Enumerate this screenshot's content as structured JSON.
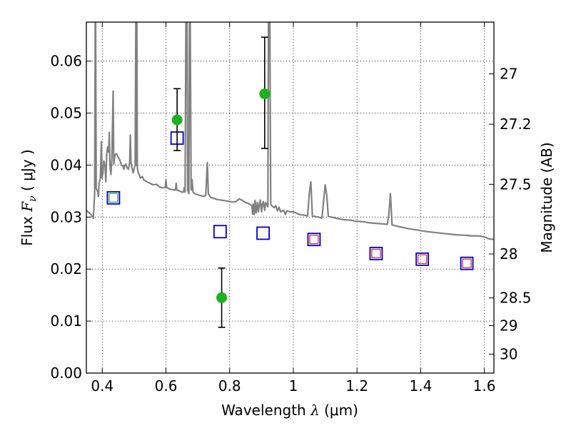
{
  "chart_data": {
    "type": "scatter",
    "x_axis": {
      "label_text": "Wavelength",
      "label_symbol": "λ",
      "label_unit": "(μm)",
      "range": [
        0.35,
        1.63
      ],
      "ticks": [
        0.4,
        0.6,
        0.8,
        1.0,
        1.2,
        1.4,
        1.6
      ],
      "tick_labels": [
        "0.4",
        "0.6",
        "0.8",
        "1",
        "1.2",
        "1.4",
        "1.6"
      ]
    },
    "y_axis": {
      "label_text": "Flux",
      "label_symbol": "F",
      "label_symbol_sub": "ν",
      "label_unit": "( μJy )",
      "range": [
        0.0,
        0.0675
      ],
      "ticks": [
        0.0,
        0.01,
        0.02,
        0.03,
        0.04,
        0.05,
        0.06
      ],
      "tick_labels": [
        "0.00",
        "0.01",
        "0.02",
        "0.03",
        "0.04",
        "0.05",
        "0.06"
      ]
    },
    "y2_axis": {
      "label": "Magnitude (AB)",
      "ticks": [
        27,
        27.2,
        27.5,
        28,
        28.5,
        29,
        30
      ],
      "tick_labels": [
        "27",
        "27.2",
        "27.5",
        "28",
        "28.5",
        "29",
        "30"
      ]
    },
    "grid": "dotted",
    "colors": {
      "model": "#808080",
      "observed": "#1db31d",
      "model_phot": "#0000cc",
      "inner_red": "#dd2222",
      "inner_green": "#22aa22",
      "errorbar": "#000000"
    },
    "series": [
      {
        "kind": "model_spectrum",
        "points": [
          [
            0.35,
            0.0313
          ],
          [
            0.365,
            0.0305
          ],
          [
            0.372,
            0.0298
          ],
          [
            0.376,
            0.0345
          ],
          [
            0.378,
            0.0702
          ],
          [
            0.379,
            0.0702
          ],
          [
            0.381,
            0.0355
          ],
          [
            0.385,
            0.035
          ],
          [
            0.388,
            0.034
          ],
          [
            0.39,
            0.0365
          ],
          [
            0.394,
            0.0375
          ],
          [
            0.397,
            0.0445
          ],
          [
            0.399,
            0.0375
          ],
          [
            0.402,
            0.0385
          ],
          [
            0.405,
            0.0408
          ],
          [
            0.409,
            0.0397
          ],
          [
            0.411,
            0.0368
          ],
          [
            0.414,
            0.0423
          ],
          [
            0.417,
            0.0435
          ],
          [
            0.42,
            0.0425
          ],
          [
            0.422,
            0.0463
          ],
          [
            0.424,
            0.0401
          ],
          [
            0.427,
            0.0382
          ],
          [
            0.43,
            0.0412
          ],
          [
            0.434,
            0.0542
          ],
          [
            0.436,
            0.0402
          ],
          [
            0.44,
            0.042
          ],
          [
            0.445,
            0.0422
          ],
          [
            0.45,
            0.0415
          ],
          [
            0.455,
            0.041
          ],
          [
            0.46,
            0.04
          ],
          [
            0.465,
            0.0398
          ],
          [
            0.468,
            0.0392
          ],
          [
            0.47,
            0.0398
          ],
          [
            0.474,
            0.0402
          ],
          [
            0.478,
            0.0395
          ],
          [
            0.482,
            0.0392
          ],
          [
            0.486,
            0.0405
          ],
          [
            0.488,
            0.0458
          ],
          [
            0.49,
            0.0405
          ],
          [
            0.493,
            0.0395
          ],
          [
            0.497,
            0.0385
          ],
          [
            0.5,
            0.0393
          ],
          [
            0.503,
            0.04
          ],
          [
            0.5055,
            0.0702
          ],
          [
            0.507,
            0.04
          ],
          [
            0.5085,
            0.0702
          ],
          [
            0.51,
            0.0395
          ],
          [
            0.513,
            0.0385
          ],
          [
            0.517,
            0.038
          ],
          [
            0.52,
            0.0375
          ],
          [
            0.526,
            0.0378
          ],
          [
            0.53,
            0.0372
          ],
          [
            0.54,
            0.0368
          ],
          [
            0.55,
            0.0365
          ],
          [
            0.56,
            0.0362
          ],
          [
            0.57,
            0.0363
          ],
          [
            0.58,
            0.0358
          ],
          [
            0.59,
            0.0356
          ],
          [
            0.598,
            0.0358
          ],
          [
            0.6,
            0.0372
          ],
          [
            0.602,
            0.0358
          ],
          [
            0.61,
            0.0354
          ],
          [
            0.62,
            0.0353
          ],
          [
            0.626,
            0.0352
          ],
          [
            0.63,
            0.0352
          ],
          [
            0.632,
            0.0365
          ],
          [
            0.634,
            0.0352
          ],
          [
            0.64,
            0.0351
          ],
          [
            0.65,
            0.0348
          ],
          [
            0.655,
            0.0348
          ],
          [
            0.657,
            0.0356
          ],
          [
            0.66,
            0.0348
          ],
          [
            0.663,
            0.0702
          ],
          [
            0.666,
            0.0702
          ],
          [
            0.668,
            0.0351
          ],
          [
            0.672,
            0.0345
          ],
          [
            0.674,
            0.0702
          ],
          [
            0.676,
            0.0702
          ],
          [
            0.679,
            0.0352
          ],
          [
            0.682,
            0.0372
          ],
          [
            0.685,
            0.0348
          ],
          [
            0.69,
            0.0345
          ],
          [
            0.7,
            0.0343
          ],
          [
            0.71,
            0.0341
          ],
          [
            0.72,
            0.034
          ],
          [
            0.725,
            0.0342
          ],
          [
            0.73,
            0.0405
          ],
          [
            0.733,
            0.0345
          ],
          [
            0.74,
            0.0338
          ],
          [
            0.75,
            0.0336
          ],
          [
            0.76,
            0.0334
          ],
          [
            0.77,
            0.0333
          ],
          [
            0.78,
            0.0332
          ],
          [
            0.79,
            0.0331
          ],
          [
            0.8,
            0.033
          ],
          [
            0.81,
            0.0329
          ],
          [
            0.82,
            0.033
          ],
          [
            0.83,
            0.0335
          ],
          [
            0.84,
            0.0332
          ],
          [
            0.85,
            0.0328
          ],
          [
            0.86,
            0.0326
          ],
          [
            0.87,
            0.0322
          ],
          [
            0.872,
            0.0306
          ],
          [
            0.874,
            0.0325
          ],
          [
            0.877,
            0.0305
          ],
          [
            0.88,
            0.0332
          ],
          [
            0.883,
            0.0308
          ],
          [
            0.887,
            0.0328
          ],
          [
            0.89,
            0.031
          ],
          [
            0.893,
            0.0322
          ],
          [
            0.896,
            0.0333
          ],
          [
            0.9,
            0.031
          ],
          [
            0.903,
            0.0325
          ],
          [
            0.906,
            0.033
          ],
          [
            0.91,
            0.0313
          ],
          [
            0.913,
            0.0328
          ],
          [
            0.916,
            0.0325
          ],
          [
            0.92,
            0.032
          ],
          [
            0.922,
            0.0702
          ],
          [
            0.926,
            0.0702
          ],
          [
            0.929,
            0.0325
          ],
          [
            0.932,
            0.0322
          ],
          [
            0.94,
            0.0318
          ],
          [
            0.945,
            0.0322
          ],
          [
            0.95,
            0.0312
          ],
          [
            0.955,
            0.0319
          ],
          [
            0.96,
            0.031
          ],
          [
            0.97,
            0.0313
          ],
          [
            0.975,
            0.0305
          ],
          [
            0.98,
            0.0312
          ],
          [
            0.99,
            0.031
          ],
          [
            1.0,
            0.031
          ],
          [
            1.02,
            0.0305
          ],
          [
            1.04,
            0.0303
          ],
          [
            1.045,
            0.0302
          ],
          [
            1.05,
            0.0345
          ],
          [
            1.055,
            0.0368
          ],
          [
            1.06,
            0.0302
          ],
          [
            1.08,
            0.03
          ],
          [
            1.09,
            0.0298
          ],
          [
            1.1,
            0.0362
          ],
          [
            1.105,
            0.0342
          ],
          [
            1.11,
            0.0301
          ],
          [
            1.12,
            0.03
          ],
          [
            1.14,
            0.0297
          ],
          [
            1.16,
            0.0295
          ],
          [
            1.18,
            0.0294
          ],
          [
            1.2,
            0.0292
          ],
          [
            1.22,
            0.0291
          ],
          [
            1.24,
            0.0289
          ],
          [
            1.26,
            0.0288
          ],
          [
            1.28,
            0.0287
          ],
          [
            1.295,
            0.0286
          ],
          [
            1.3,
            0.0305
          ],
          [
            1.305,
            0.0345
          ],
          [
            1.31,
            0.0285
          ],
          [
            1.33,
            0.0282
          ],
          [
            1.36,
            0.0278
          ],
          [
            1.39,
            0.0275
          ],
          [
            1.42,
            0.0272
          ],
          [
            1.45,
            0.027
          ],
          [
            1.48,
            0.0268
          ],
          [
            1.51,
            0.0266
          ],
          [
            1.54,
            0.0265
          ],
          [
            1.56,
            0.0264
          ],
          [
            1.58,
            0.0264
          ],
          [
            1.6,
            0.0262
          ],
          [
            1.615,
            0.0258
          ],
          [
            1.63,
            0.0257
          ]
        ]
      },
      {
        "kind": "observed_photometry",
        "points": [
          {
            "x": 0.635,
            "y": 0.0487,
            "err": [
              0.0428,
              0.0547
            ]
          },
          {
            "x": 0.775,
            "y": 0.0145,
            "err": [
              0.0088,
              0.0202
            ]
          },
          {
            "x": 0.91,
            "y": 0.0537,
            "err": [
              0.0432,
              0.0646
            ]
          }
        ]
      },
      {
        "kind": "model_photometry",
        "points": [
          {
            "x": 0.435,
            "y": 0.0337,
            "inner": "green"
          },
          {
            "x": 0.635,
            "y": 0.0452,
            "inner": "none"
          },
          {
            "x": 0.77,
            "y": 0.0272,
            "inner": "none"
          },
          {
            "x": 0.905,
            "y": 0.0269,
            "inner": "none"
          },
          {
            "x": 1.065,
            "y": 0.0257,
            "inner": "red"
          },
          {
            "x": 1.26,
            "y": 0.023,
            "inner": "red"
          },
          {
            "x": 1.405,
            "y": 0.0219,
            "inner": "red"
          },
          {
            "x": 1.545,
            "y": 0.0211,
            "inner": "red"
          }
        ]
      }
    ]
  }
}
